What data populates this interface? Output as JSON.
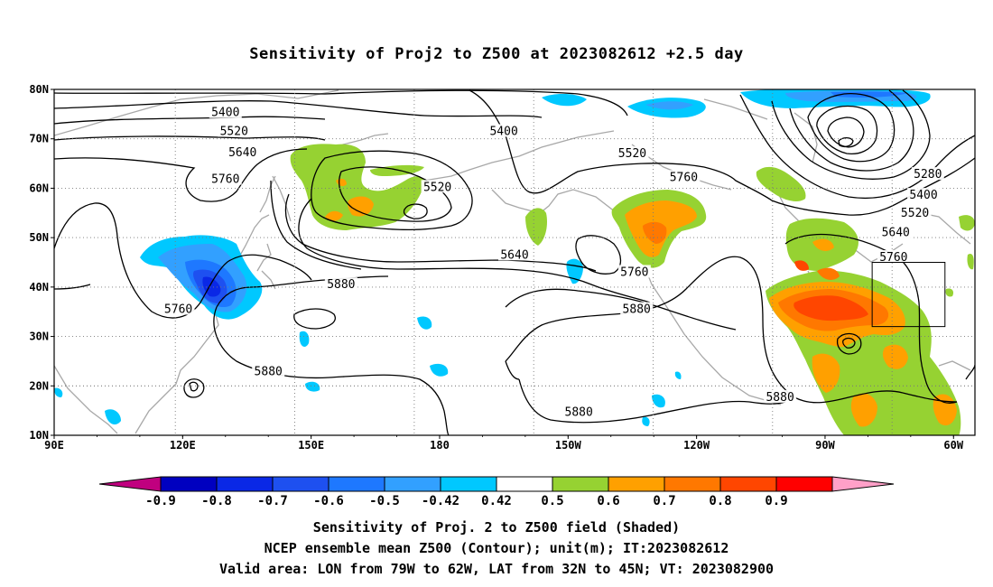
{
  "title": "Sensitivity of Proj2 to Z500 at 2023082612 +2.5 day",
  "map": {
    "lon_range": [
      90,
      305
    ],
    "lat_range": [
      10,
      80
    ],
    "lat_ticks": [
      {
        "value": 80,
        "label": "80N"
      },
      {
        "value": 70,
        "label": "70N"
      },
      {
        "value": 60,
        "label": "60N"
      },
      {
        "value": 50,
        "label": "50N"
      },
      {
        "value": 40,
        "label": "40N"
      },
      {
        "value": 30,
        "label": "30N"
      },
      {
        "value": 20,
        "label": "20N"
      },
      {
        "value": 10,
        "label": "10N"
      }
    ],
    "lon_ticks": [
      {
        "value": 90,
        "label": "90E"
      },
      {
        "value": 120,
        "label": "120E"
      },
      {
        "value": 150,
        "label": "150E"
      },
      {
        "value": 180,
        "label": "180"
      },
      {
        "value": 210,
        "label": "150W"
      },
      {
        "value": 240,
        "label": "120W"
      },
      {
        "value": 270,
        "label": "90W"
      },
      {
        "value": 300,
        "label": "60W"
      }
    ],
    "contour_labels": [
      {
        "text": "5400",
        "lon": 130,
        "lat": 75.3
      },
      {
        "text": "5520",
        "lon": 132,
        "lat": 71.5
      },
      {
        "text": "5640",
        "lon": 134,
        "lat": 67.2
      },
      {
        "text": "5760",
        "lon": 130,
        "lat": 61.8
      },
      {
        "text": "5400",
        "lon": 195,
        "lat": 71.5
      },
      {
        "text": "5520",
        "lon": 225,
        "lat": 67
      },
      {
        "text": "5520",
        "lon": 179.5,
        "lat": 60.2
      },
      {
        "text": "5760",
        "lon": 237,
        "lat": 62.2
      },
      {
        "text": "5280",
        "lon": 294,
        "lat": 62.8
      },
      {
        "text": "5400",
        "lon": 293,
        "lat": 58.6
      },
      {
        "text": "5520",
        "lon": 291,
        "lat": 55
      },
      {
        "text": "5640",
        "lon": 286.5,
        "lat": 51
      },
      {
        "text": "5760",
        "lon": 286,
        "lat": 46
      },
      {
        "text": "5640",
        "lon": 197.5,
        "lat": 46.5
      },
      {
        "text": "5760",
        "lon": 225.5,
        "lat": 43
      },
      {
        "text": "5880",
        "lon": 157,
        "lat": 40.5
      },
      {
        "text": "5880",
        "lon": 226,
        "lat": 35.5
      },
      {
        "text": "5760",
        "lon": 119,
        "lat": 35.5
      },
      {
        "text": "5880",
        "lon": 140,
        "lat": 22.9
      },
      {
        "text": "5880",
        "lon": 259.5,
        "lat": 17.7
      },
      {
        "text": "5880",
        "lon": 212.5,
        "lat": 14.7
      }
    ],
    "valid_box": {
      "lon_min": 281,
      "lon_max": 298,
      "lat_min": 32,
      "lat_max": 45
    }
  },
  "colorbar": {
    "colors": [
      "#c0007f",
      "#0000c0",
      "#0a28e6",
      "#1e50f0",
      "#1e78ff",
      "#32a0ff",
      "#00c8ff",
      "#ffffff",
      "#96d232",
      "#ffa000",
      "#ff7800",
      "#ff4600",
      "#ff0000",
      "#ffa0c8"
    ],
    "labels": [
      "-0.9",
      "-0.8",
      "-0.7",
      "-0.6",
      "-0.5",
      "-0.42",
      "0.42",
      "0.5",
      "0.6",
      "0.7",
      "0.8",
      "0.9"
    ]
  },
  "footer": {
    "line1": "Sensitivity of Proj. 2 to Z500 field (Shaded)",
    "line2": "NCEP ensemble mean Z500 (Contour); unit(m); IT:2023082612",
    "line3": "Valid area: LON from 79W to 62W, LAT from 32N to 45N; VT: 2023082900"
  }
}
